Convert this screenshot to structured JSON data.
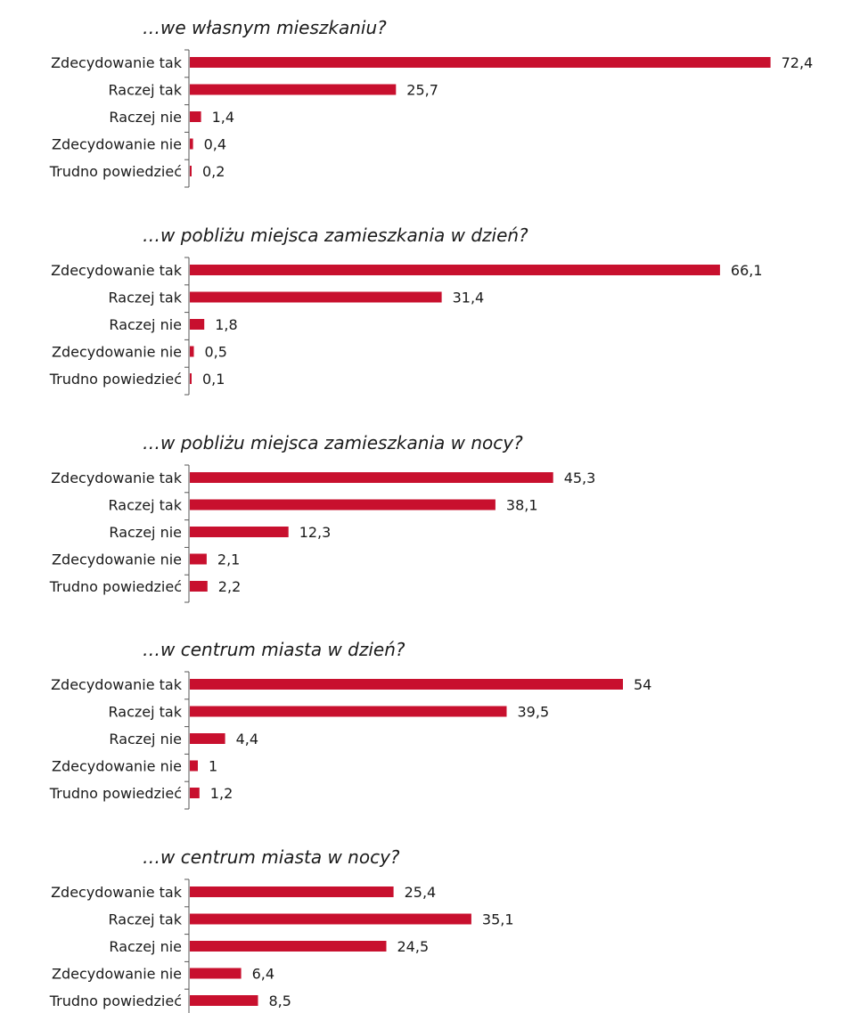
{
  "colors": {
    "bar": "#c8102e",
    "text": "#1a1a1a",
    "axis": "#555555"
  },
  "chart_data": [
    {
      "type": "bar",
      "orientation": "horizontal",
      "title": "…we własnym mieszkaniu?",
      "categories": [
        "Zdecydowanie tak",
        "Raczej tak",
        "Raczej nie",
        "Zdecydowanie nie",
        "Trudno powiedzieć"
      ],
      "values": [
        72.4,
        25.7,
        1.4,
        0.4,
        0.2
      ],
      "value_labels": [
        "72,4",
        "25,7",
        "1,4",
        "0,4",
        "0,2"
      ],
      "xlim": [
        0,
        80
      ]
    },
    {
      "type": "bar",
      "orientation": "horizontal",
      "title": "…w pobliżu miejsca zamieszkania w dzień?",
      "categories": [
        "Zdecydowanie tak",
        "Raczej tak",
        "Raczej nie",
        "Zdecydowanie nie",
        "Trudno powiedzieć"
      ],
      "values": [
        66.1,
        31.4,
        1.8,
        0.5,
        0.1
      ],
      "value_labels": [
        "66,1",
        "31,4",
        "1,8",
        "0,5",
        "0,1"
      ],
      "xlim": [
        0,
        70
      ]
    },
    {
      "type": "bar",
      "orientation": "horizontal",
      "title": "…w pobliżu miejsca zamieszkania w nocy?",
      "categories": [
        "Zdecydowanie tak",
        "Raczej tak",
        "Raczej nie",
        "Zdecydowanie nie",
        "Trudno powiedzieć"
      ],
      "values": [
        45.3,
        38.1,
        12.3,
        2.1,
        2.2
      ],
      "value_labels": [
        "45,3",
        "38,1",
        "12,3",
        "2,1",
        "2,2"
      ],
      "xlim": [
        0,
        50
      ]
    },
    {
      "type": "bar",
      "orientation": "horizontal",
      "title": "…w centrum miasta w dzień?",
      "categories": [
        "Zdecydowanie tak",
        "Raczej tak",
        "Raczej nie",
        "Zdecydowanie nie",
        "Trudno powiedzieć"
      ],
      "values": [
        54,
        39.5,
        4.4,
        1,
        1.2
      ],
      "value_labels": [
        "54",
        "39,5",
        "4,4",
        "1",
        "1,2"
      ],
      "xlim": [
        0,
        60
      ]
    },
    {
      "type": "bar",
      "orientation": "horizontal",
      "title": "…w centrum miasta w nocy?",
      "categories": [
        "Zdecydowanie tak",
        "Raczej tak",
        "Raczej nie",
        "Zdecydowanie nie",
        "Trudno powiedzieć"
      ],
      "values": [
        25.4,
        35.1,
        24.5,
        6.4,
        8.5
      ],
      "value_labels": [
        "25,4",
        "35,1",
        "24,5",
        "6,4",
        "8,5"
      ],
      "xlim": [
        0,
        40
      ]
    }
  ]
}
